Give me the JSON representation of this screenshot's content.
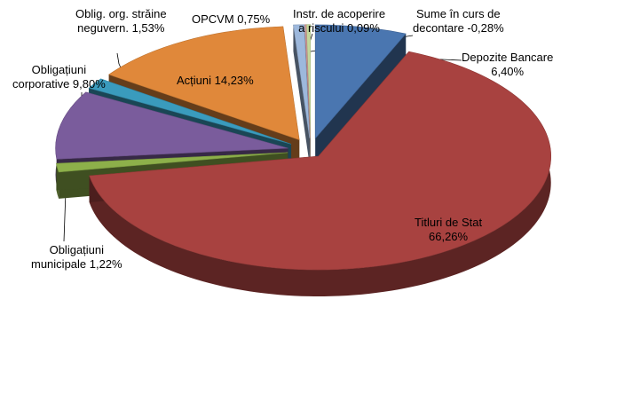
{
  "chart_data": {
    "type": "pie",
    "title": "",
    "slices": [
      {
        "name": "Depozite Bancare",
        "value": 6.4,
        "value_label": "6,40%",
        "color": "#4a76b0",
        "exploded": true
      },
      {
        "name": "Titluri de Stat",
        "value": 66.26,
        "value_label": "66,26%",
        "color": "#a84240",
        "exploded": true
      },
      {
        "name": "Obligațiuni municipale",
        "value": 1.22,
        "value_label": "1,22%",
        "color": "#8db04a",
        "exploded": true
      },
      {
        "name": "Obligațiuni corporative",
        "value": 9.8,
        "value_label": "9,80%",
        "color": "#7a5c9c",
        "exploded": true
      },
      {
        "name": "Oblig. org. străine neguvern.",
        "value": 1.53,
        "value_label": "1,53%",
        "color": "#3a9bbd",
        "exploded": true
      },
      {
        "name": "Acțiuni",
        "value": 14.23,
        "value_label": "14,23%",
        "color": "#e0883a",
        "exploded": true
      },
      {
        "name": "OPCVM",
        "value": 0.75,
        "value_label": "0,75%",
        "color": "#9db8dc",
        "exploded": true
      },
      {
        "name": "Instr. de acoperire a riscului",
        "value": 0.09,
        "value_label": "0,09%",
        "color": "#d89d9a",
        "exploded": true
      },
      {
        "name": "Sume în curs de decontare",
        "value": -0.28,
        "value_label": "-0,28%",
        "color": "#c4d79b",
        "exploded": true
      }
    ],
    "legend": "none",
    "data_labels": "outside with leader lines"
  },
  "labels": {
    "depozite": {
      "line1": "Depozite Bancare",
      "line2": "6,40%"
    },
    "titluri": {
      "line1": "Titluri de Stat",
      "line2": "66,26%"
    },
    "municipale": {
      "line1": "Obligațiuni",
      "line2": "municipale 1,22%"
    },
    "corporative": {
      "line1": "Obligațiuni",
      "line2": "corporative  9,80%"
    },
    "straine": {
      "line1": "Oblig. org. străine",
      "line2": "neguvern. 1,53%"
    },
    "actiuni": {
      "line1": "Acțiuni 14,23%"
    },
    "opcvm": {
      "line1": "OPCVM 0,75%"
    },
    "instr": {
      "line1": "Instr. de acoperire",
      "line2": "a riscului 0,09%"
    },
    "sume": {
      "line1": "Sume în curs de",
      "line2": "decontare -0,28%"
    }
  }
}
